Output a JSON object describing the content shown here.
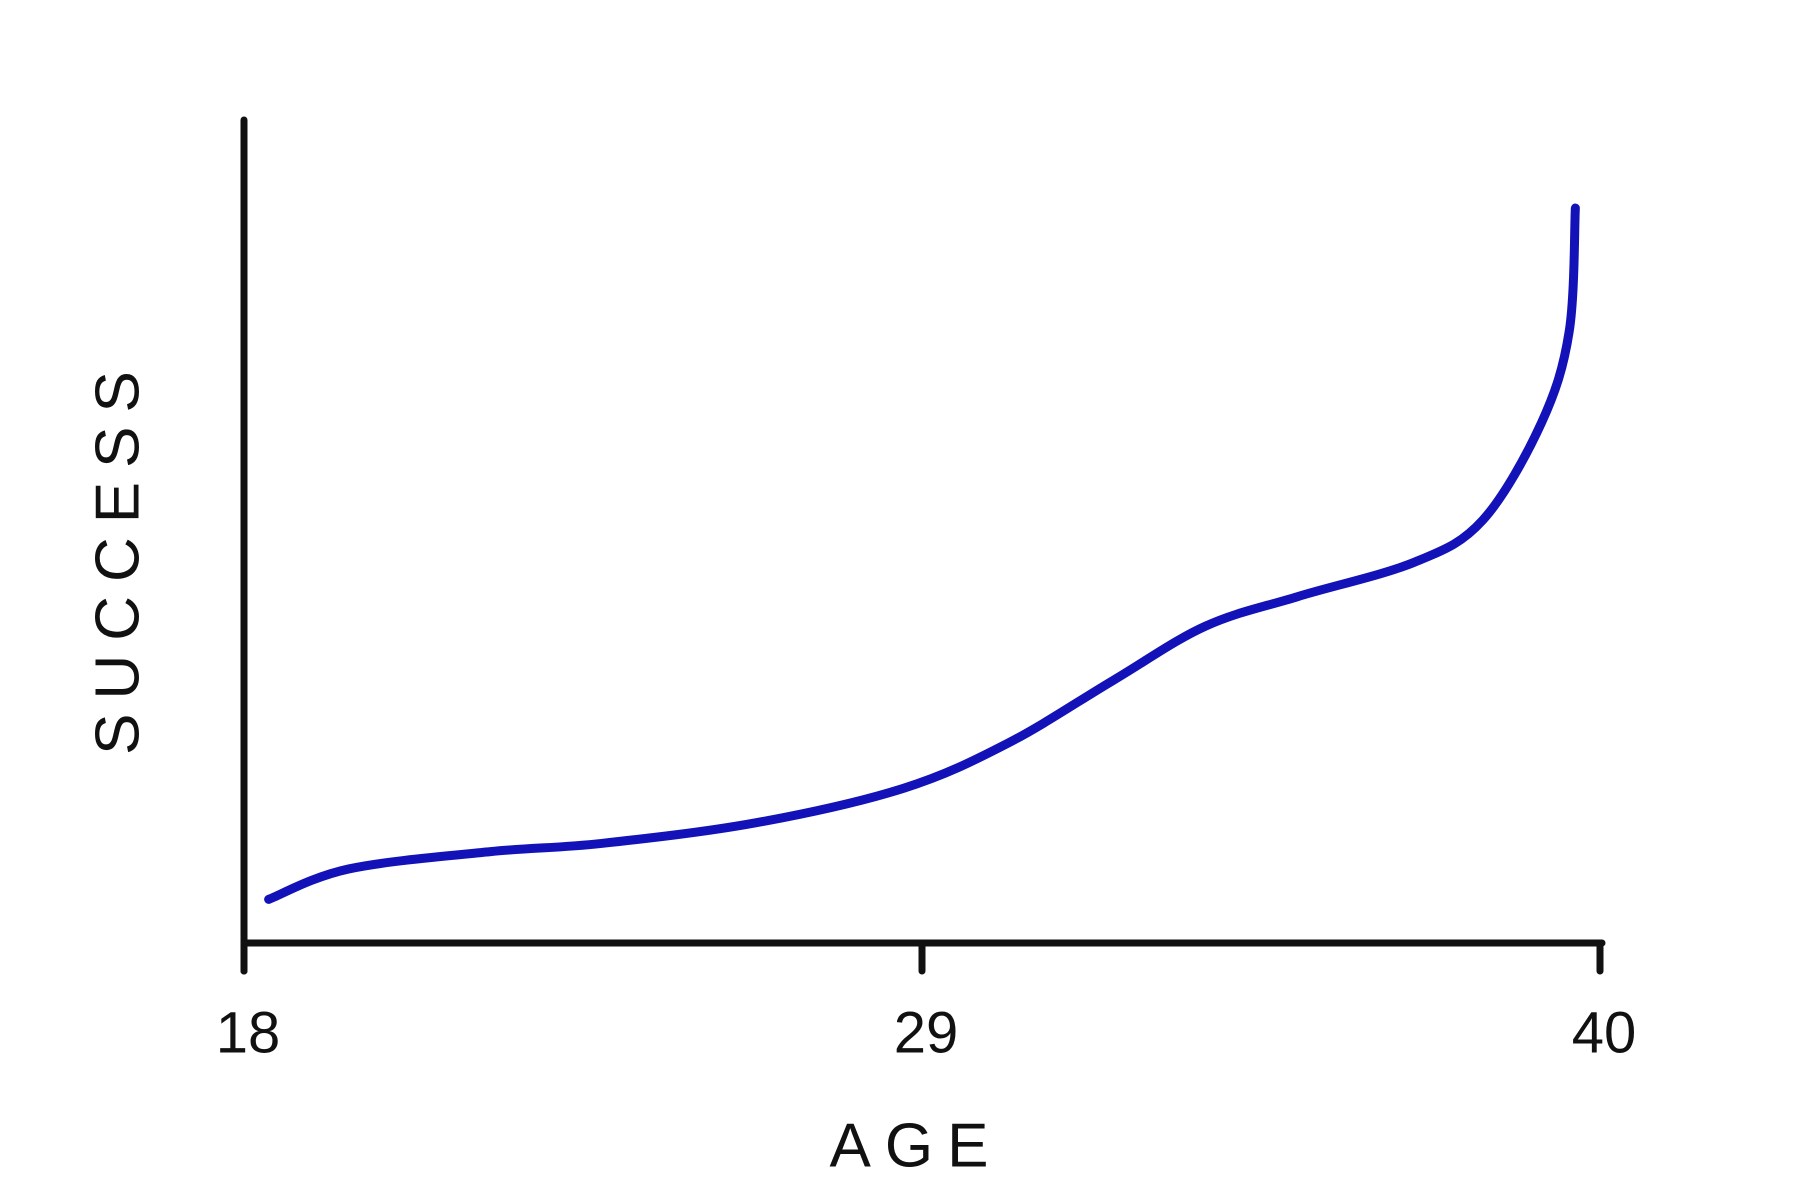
{
  "chart_data": {
    "type": "line",
    "x_label": "AGE",
    "y_label": "SUCCESS",
    "xlim": [
      18,
      40
    ],
    "ylim": [
      0,
      100
    ],
    "xticks": [
      18,
      29,
      40
    ],
    "series": [
      {
        "color": "#1212b8",
        "x": [
          18.4,
          19.7,
          22.0,
          23.8,
          26.3,
          28.7,
          30.4,
          32.1,
          33.6,
          35.1,
          37.0,
          38.1,
          39.05,
          39.5,
          39.6
        ],
        "values": [
          5.3,
          9.0,
          11.1,
          12.1,
          14.6,
          18.8,
          24.3,
          31.9,
          38.5,
          42.1,
          46.3,
          51.4,
          63.2,
          74.3,
          89.3
        ]
      }
    ]
  }
}
